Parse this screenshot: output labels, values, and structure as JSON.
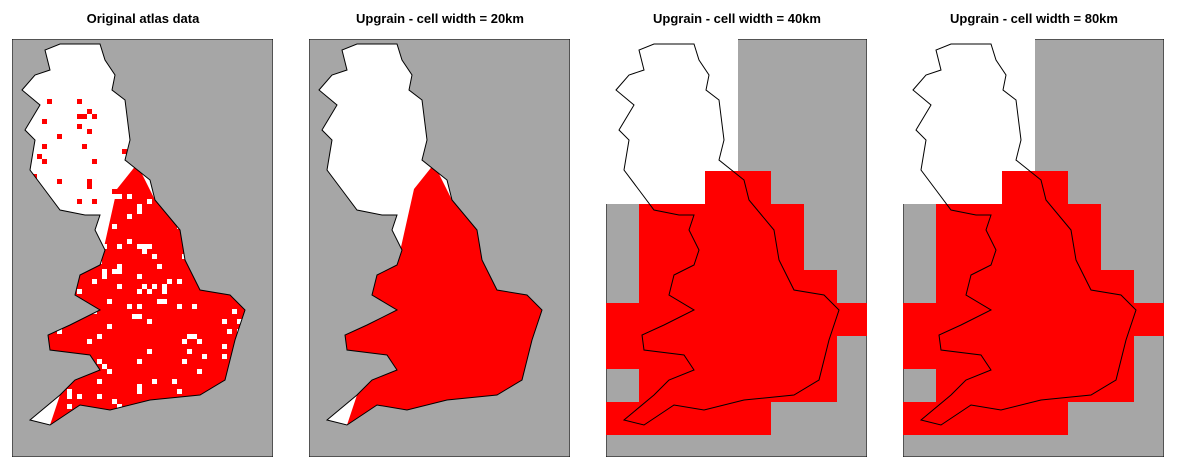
{
  "colors": {
    "background": "#a6a6a6",
    "absent": "#ffffff",
    "present": "#ff0000",
    "outline": "#000000"
  },
  "panels": [
    {
      "title": "Original atlas data"
    },
    {
      "title": "Upgrain - cell width = 20km"
    },
    {
      "title": "Upgrain - cell width = 40km"
    },
    {
      "title": "Upgrain - cell width = 80km"
    }
  ]
}
